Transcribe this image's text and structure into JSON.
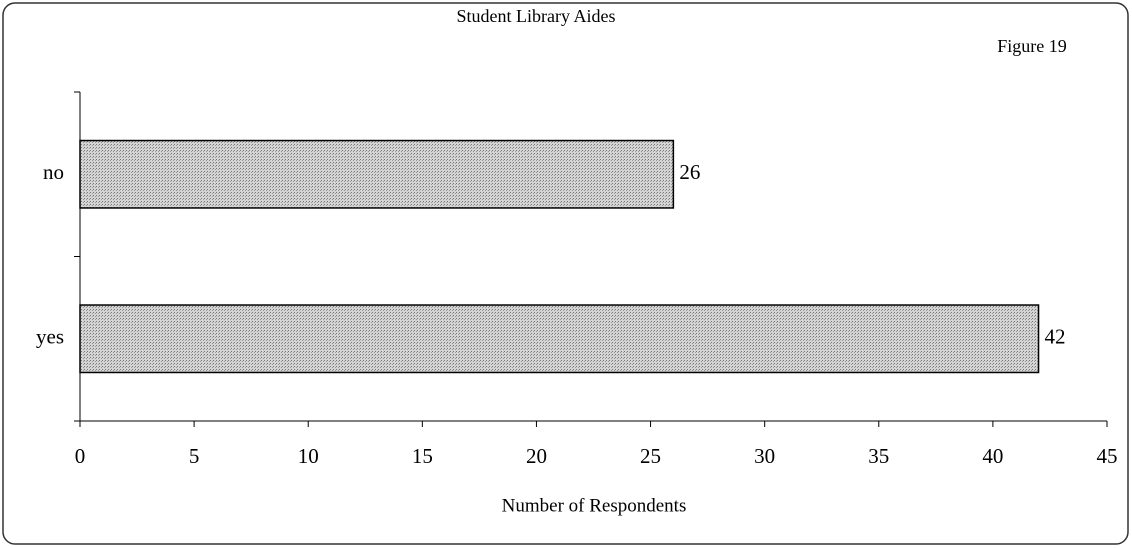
{
  "chart_data": {
    "type": "hbar",
    "title": "Student Library Aides",
    "annotation": "Figure 19",
    "xlabel": "Number of Respondents",
    "categories": [
      "no",
      "yes"
    ],
    "values": [
      26,
      42
    ],
    "color": "#b8b8b8",
    "xlim": [
      0,
      45
    ],
    "xticks": [
      0,
      5,
      10,
      15,
      20,
      25,
      30,
      35,
      40,
      45
    ]
  }
}
